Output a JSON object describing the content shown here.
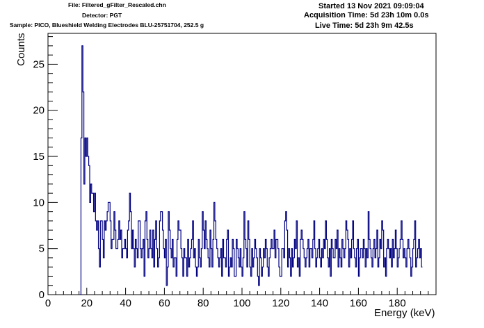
{
  "header": {
    "file": "File: Filtered_gFilter_Rescaled.chn",
    "detector": "Detector: PGT",
    "sample": "Sample: PICO, Blueshield Welding Electrodes BLU-25751704, 252.5 g",
    "started": "Started 13 Nov 2021 09:09:04",
    "acquisition": "Acquisition Time: 5d 23h 10m 0.0s",
    "live": "Live Time: 5d 23h 9m 42.5s"
  },
  "chart_data": {
    "type": "histogram",
    "xlabel": "Energy (keV)",
    "ylabel": "Counts",
    "xlim": [
      0,
      200
    ],
    "ylim": [
      0,
      28.35
    ],
    "xticks": [
      0,
      20,
      40,
      60,
      80,
      100,
      120,
      140,
      160,
      180
    ],
    "yticks": [
      0,
      5,
      10,
      15,
      20,
      25
    ],
    "bin_width": 0.5,
    "line_color": "#000080",
    "start_bin_edge": 17.0,
    "counts": [
      17,
      27,
      22,
      12,
      17,
      15,
      17,
      15,
      14,
      10,
      12,
      11,
      11,
      9,
      11,
      8,
      7,
      8,
      5,
      3,
      8,
      8,
      6,
      4,
      8,
      7,
      8,
      9,
      10,
      10,
      8,
      5,
      6,
      6,
      9,
      7,
      5,
      5,
      6,
      8,
      6,
      7,
      4,
      5,
      5,
      6,
      5,
      4,
      7,
      8,
      11,
      9,
      5,
      7,
      5,
      3,
      6,
      5,
      4,
      8,
      8,
      5,
      4,
      5,
      6,
      2,
      8,
      9,
      6,
      4,
      5,
      7,
      5,
      4,
      7,
      3,
      6,
      8,
      5,
      3,
      4,
      8,
      9,
      9,
      7,
      5,
      4,
      6,
      1,
      3,
      9,
      7,
      5,
      4,
      6,
      3,
      4,
      4,
      2,
      6,
      8,
      7,
      7,
      5,
      4,
      2,
      5,
      4,
      4,
      2,
      6,
      3,
      4,
      5,
      6,
      8,
      4,
      5,
      3,
      2,
      3,
      6,
      4,
      3,
      5,
      9,
      7,
      5,
      8,
      6,
      5,
      4,
      3,
      7,
      5,
      3,
      6,
      10,
      8,
      6,
      5,
      4,
      3,
      4,
      5,
      2,
      6,
      4,
      4,
      3,
      6,
      7,
      2,
      3,
      4,
      3,
      6,
      5,
      2,
      2,
      6,
      5,
      4,
      3,
      5,
      3,
      2,
      4,
      9,
      6,
      5,
      3,
      8,
      6,
      3,
      2,
      5,
      3,
      4,
      6,
      5,
      4,
      2,
      1,
      5,
      4,
      2,
      3,
      5,
      4,
      6,
      5,
      3,
      2,
      4,
      5,
      6,
      5,
      5,
      7,
      4,
      6,
      6,
      5,
      3,
      2,
      2,
      5,
      5,
      4,
      8,
      9,
      7,
      3,
      5,
      4,
      2,
      5,
      3,
      4,
      6,
      5,
      8,
      3,
      4,
      2,
      6,
      7,
      6,
      5,
      4,
      3,
      4,
      5,
      6,
      3,
      5,
      5,
      4,
      6,
      8,
      5,
      3,
      4,
      5,
      6,
      4,
      3,
      5,
      4,
      6,
      5,
      8,
      6,
      4,
      3,
      5,
      2,
      6,
      5,
      4,
      4,
      6,
      5,
      7,
      3,
      5,
      4,
      3,
      6,
      5,
      4,
      5,
      8,
      7,
      6,
      3,
      5,
      4,
      6,
      8,
      5,
      4,
      3,
      5,
      6,
      2,
      4,
      5,
      5,
      4,
      6,
      5,
      3,
      5,
      4,
      9,
      6,
      5,
      4,
      3,
      5,
      6,
      4,
      5,
      7,
      3,
      4,
      6,
      5,
      8,
      7,
      3,
      4,
      2,
      5,
      6,
      5,
      4,
      5,
      3,
      6,
      4,
      5,
      7,
      5,
      3,
      4,
      5,
      6,
      8,
      6,
      4,
      5,
      4,
      3,
      5,
      6,
      5,
      4,
      2,
      3,
      5,
      6,
      8,
      3,
      4,
      5,
      6,
      4,
      5,
      3
    ]
  }
}
